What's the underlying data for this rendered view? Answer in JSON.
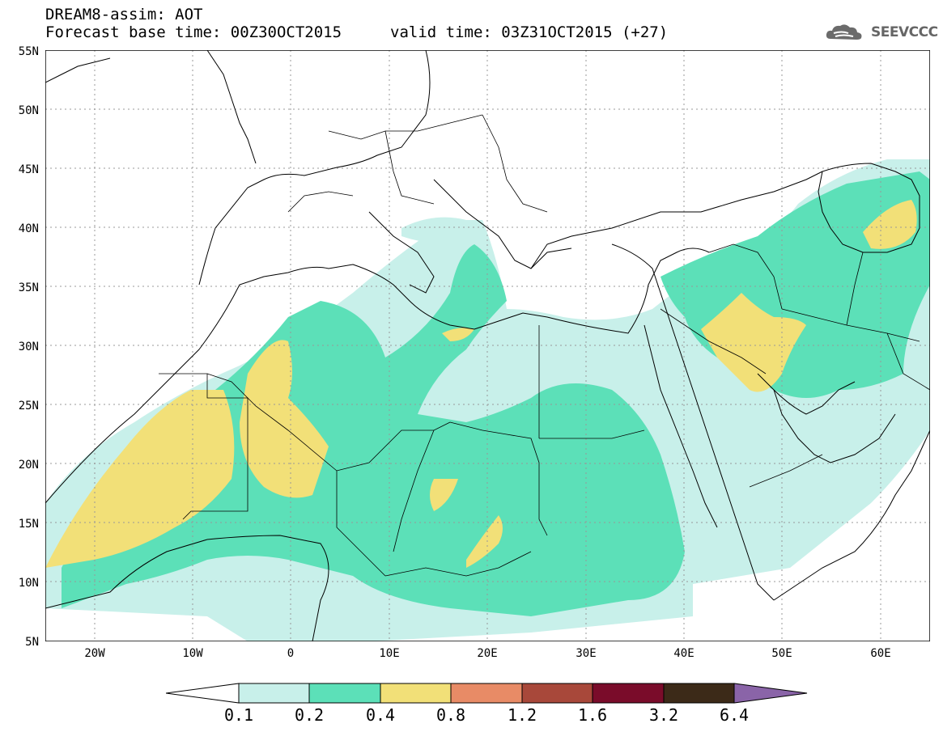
{
  "header": {
    "line1": "DREAM8-assim: AOT",
    "line2": "Forecast base time: 00Z30OCT2015",
    "line3": "valid time: 03Z31OCT2015 (+27)"
  },
  "logo": {
    "text": "SEEVCCC",
    "icon": "cloud-icon"
  },
  "map": {
    "lon_range": [
      -25,
      65
    ],
    "lat_range": [
      5,
      55
    ],
    "lat_labels": [
      "55N",
      "50N",
      "45N",
      "40N",
      "35N",
      "30N",
      "25N",
      "20N",
      "15N",
      "10N",
      "5N"
    ],
    "lon_labels": [
      "20W",
      "10W",
      "0",
      "10E",
      "20E",
      "30E",
      "40E",
      "50E",
      "60E"
    ],
    "grid": true
  },
  "colorbar": {
    "levels": [
      "0.1",
      "0.2",
      "0.4",
      "0.8",
      "1.2",
      "1.6",
      "3.2",
      "6.4"
    ],
    "colors": [
      "#ffffff",
      "#c8f0ea",
      "#5ce0b8",
      "#f2e078",
      "#e88b66",
      "#a8483a",
      "#7a0c2a",
      "#3c2a18",
      "#8a64a8"
    ]
  }
}
